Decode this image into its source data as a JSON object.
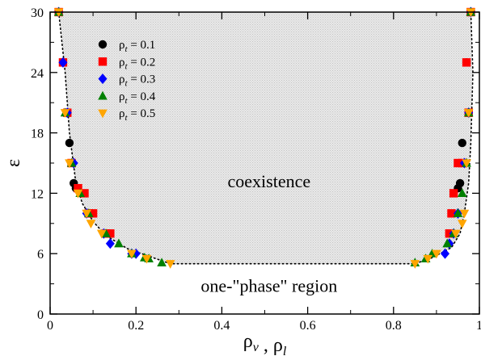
{
  "chart_data": {
    "type": "scatter",
    "xlabel": "ρ_v , ρ_l",
    "ylabel": "ε",
    "xlim": [
      0,
      1
    ],
    "ylim": [
      0,
      30
    ],
    "x_ticks": [
      0,
      0.2,
      0.4,
      0.6,
      0.8,
      1
    ],
    "x_tick_labels": [
      "0",
      "0.2",
      "0.4",
      "0.6",
      "0.8",
      "1"
    ],
    "x_minor_ticks": [
      0.1,
      0.3,
      0.5,
      0.7,
      0.9
    ],
    "y_ticks": [
      0,
      6,
      12,
      18,
      24,
      30
    ],
    "y_tick_labels": [
      "0",
      "6",
      "12",
      "18",
      "24",
      "30"
    ],
    "y_minor_ticks": [
      3,
      9,
      15,
      21,
      27
    ],
    "grid": false,
    "legend_position": "top-left",
    "annotations": [
      {
        "text": "coexistence",
        "x": 0.51,
        "y": 12.6
      },
      {
        "text": "one-\"phase\" region",
        "x": 0.51,
        "y": 2.2
      }
    ],
    "shaded_region": {
      "name": "coexistence",
      "color": "#e0e0e0",
      "boundary": [
        [
          0.02,
          30
        ],
        [
          0.035,
          24
        ],
        [
          0.045,
          18
        ],
        [
          0.06,
          13
        ],
        [
          0.075,
          11
        ],
        [
          0.1,
          9.2
        ],
        [
          0.13,
          7.8
        ],
        [
          0.18,
          6.5
        ],
        [
          0.24,
          5.6
        ],
        [
          0.28,
          5.0
        ],
        [
          0.85,
          5.0
        ],
        [
          0.89,
          5.6
        ],
        [
          0.935,
          6.6
        ],
        [
          0.955,
          8.0
        ],
        [
          0.965,
          10
        ],
        [
          0.975,
          13
        ],
        [
          0.98,
          17
        ],
        [
          0.985,
          24
        ],
        [
          0.98,
          30
        ]
      ]
    },
    "series": [
      {
        "name": "ρ_t = 0.1",
        "label_main": "ρ",
        "label_sub": "t",
        "label_value": " = 0.1",
        "marker": "circle",
        "color": "#000000",
        "points": [
          [
            0.02,
            30
          ],
          [
            0.04,
            20
          ],
          [
            0.045,
            17
          ],
          [
            0.055,
            13
          ],
          [
            0.06,
            12.5
          ],
          [
            0.98,
            30
          ],
          [
            0.97,
            25
          ],
          [
            0.975,
            20
          ],
          [
            0.96,
            17
          ],
          [
            0.955,
            13
          ],
          [
            0.95,
            12.5
          ]
        ]
      },
      {
        "name": "ρ_t = 0.2",
        "label_main": "ρ",
        "label_sub": "t",
        "label_value": " = 0.2",
        "marker": "square",
        "color": "#ff0000",
        "points": [
          [
            0.02,
            30
          ],
          [
            0.03,
            25
          ],
          [
            0.04,
            20
          ],
          [
            0.05,
            15
          ],
          [
            0.065,
            12.5
          ],
          [
            0.08,
            12
          ],
          [
            0.09,
            10
          ],
          [
            0.1,
            10
          ],
          [
            0.13,
            8
          ],
          [
            0.14,
            8
          ],
          [
            0.98,
            30
          ],
          [
            0.97,
            25
          ],
          [
            0.975,
            20
          ],
          [
            0.96,
            15
          ],
          [
            0.95,
            15
          ],
          [
            0.94,
            12
          ],
          [
            0.935,
            10
          ],
          [
            0.93,
            8
          ]
        ]
      },
      {
        "name": "ρ_t = 0.3",
        "label_main": "ρ",
        "label_sub": "t",
        "label_value": " = 0.3",
        "marker": "diamond",
        "color": "#0000ff",
        "points": [
          [
            0.02,
            30
          ],
          [
            0.03,
            25
          ],
          [
            0.04,
            20
          ],
          [
            0.055,
            15
          ],
          [
            0.085,
            10
          ],
          [
            0.125,
            8
          ],
          [
            0.14,
            7
          ],
          [
            0.19,
            6
          ],
          [
            0.2,
            6
          ],
          [
            0.98,
            30
          ],
          [
            0.975,
            20
          ],
          [
            0.965,
            15
          ],
          [
            0.95,
            10
          ],
          [
            0.94,
            8
          ],
          [
            0.93,
            7
          ],
          [
            0.92,
            6
          ]
        ]
      },
      {
        "name": "ρ_t = 0.4",
        "label_main": "ρ",
        "label_sub": "t",
        "label_value": " = 0.4",
        "marker": "triangle-up",
        "color": "#008000",
        "points": [
          [
            0.02,
            30
          ],
          [
            0.035,
            20
          ],
          [
            0.05,
            15
          ],
          [
            0.07,
            12
          ],
          [
            0.09,
            10
          ],
          [
            0.13,
            8
          ],
          [
            0.16,
            7
          ],
          [
            0.19,
            6
          ],
          [
            0.22,
            5.6
          ],
          [
            0.23,
            5.5
          ],
          [
            0.26,
            5.1
          ],
          [
            0.98,
            30
          ],
          [
            0.975,
            20
          ],
          [
            0.97,
            15
          ],
          [
            0.96,
            12
          ],
          [
            0.95,
            10
          ],
          [
            0.94,
            8
          ],
          [
            0.925,
            7
          ],
          [
            0.89,
            6
          ],
          [
            0.875,
            5.5
          ],
          [
            0.85,
            5.1
          ]
        ]
      },
      {
        "name": "ρ_t = 0.5",
        "label_main": "ρ",
        "label_sub": "t",
        "label_value": " = 0.5",
        "marker": "triangle-down",
        "color": "#ffa500",
        "points": [
          [
            0.02,
            30
          ],
          [
            0.035,
            20
          ],
          [
            0.045,
            15
          ],
          [
            0.065,
            12
          ],
          [
            0.085,
            10
          ],
          [
            0.095,
            9
          ],
          [
            0.12,
            8
          ],
          [
            0.19,
            6
          ],
          [
            0.225,
            5.5
          ],
          [
            0.28,
            5.0
          ],
          [
            0.98,
            30
          ],
          [
            0.975,
            20
          ],
          [
            0.97,
            15
          ],
          [
            0.965,
            10
          ],
          [
            0.96,
            9
          ],
          [
            0.945,
            8
          ],
          [
            0.9,
            6
          ],
          [
            0.88,
            5.5
          ],
          [
            0.85,
            5.0
          ]
        ]
      }
    ]
  }
}
